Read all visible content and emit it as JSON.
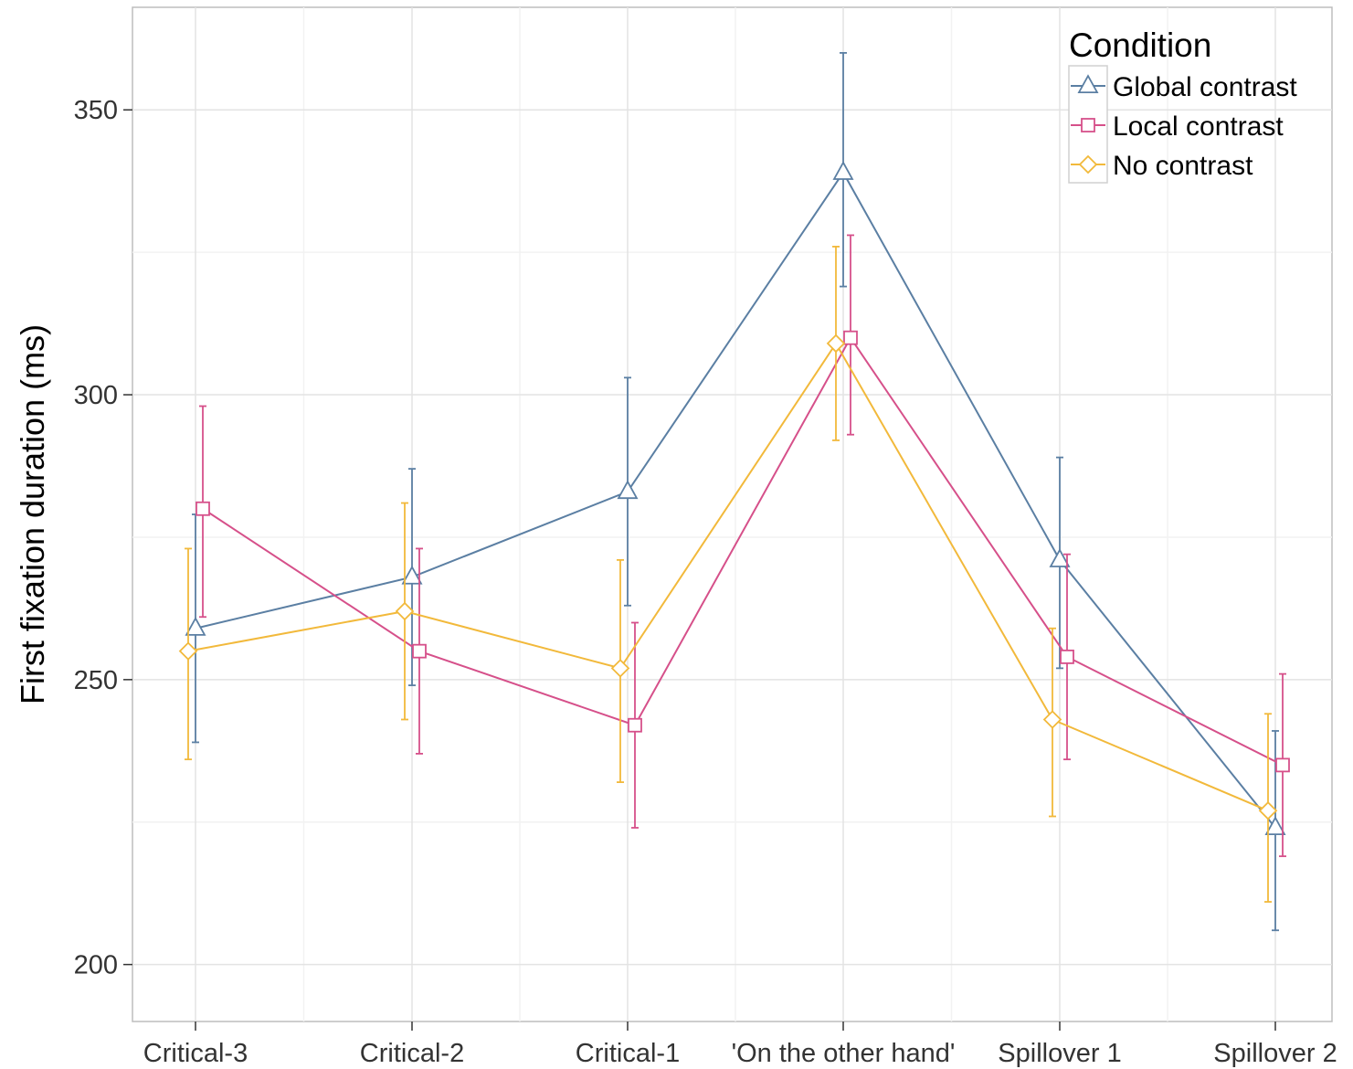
{
  "chart_data": {
    "type": "line",
    "title": "",
    "xlabel": "",
    "ylabel": "First fixation duration (ms)",
    "categories": [
      "Critical-3",
      "Critical-2",
      "Critical-1",
      "'On the other hand'",
      "Spillover 1",
      "Spillover 2"
    ],
    "ylim": [
      190,
      368
    ],
    "yticks": [
      200,
      250,
      300,
      350
    ],
    "ytick_labels": [
      "200",
      "250",
      "300",
      "350"
    ],
    "grid": true,
    "legend": {
      "title": "Condition",
      "position": "top-right"
    },
    "series": [
      {
        "name": "Global contrast",
        "color": "#5b7fa3",
        "marker": "triangle",
        "values": [
          259,
          268,
          283,
          339,
          271,
          224
        ],
        "err_low": [
          239,
          249,
          263,
          319,
          252,
          206
        ],
        "err_high": [
          279,
          287,
          303,
          360,
          289,
          241
        ]
      },
      {
        "name": "Local contrast",
        "color": "#d6508a",
        "marker": "square",
        "values": [
          280,
          255,
          242,
          310,
          254,
          235
        ],
        "err_low": [
          261,
          237,
          224,
          293,
          236,
          219
        ],
        "err_high": [
          298,
          273,
          260,
          328,
          272,
          251
        ]
      },
      {
        "name": "No contrast",
        "color": "#f2b93b",
        "marker": "diamond",
        "values": [
          255,
          262,
          252,
          309,
          243,
          227
        ],
        "err_low": [
          236,
          243,
          232,
          292,
          226,
          211
        ],
        "err_high": [
          273,
          281,
          271,
          326,
          259,
          244
        ]
      }
    ]
  }
}
